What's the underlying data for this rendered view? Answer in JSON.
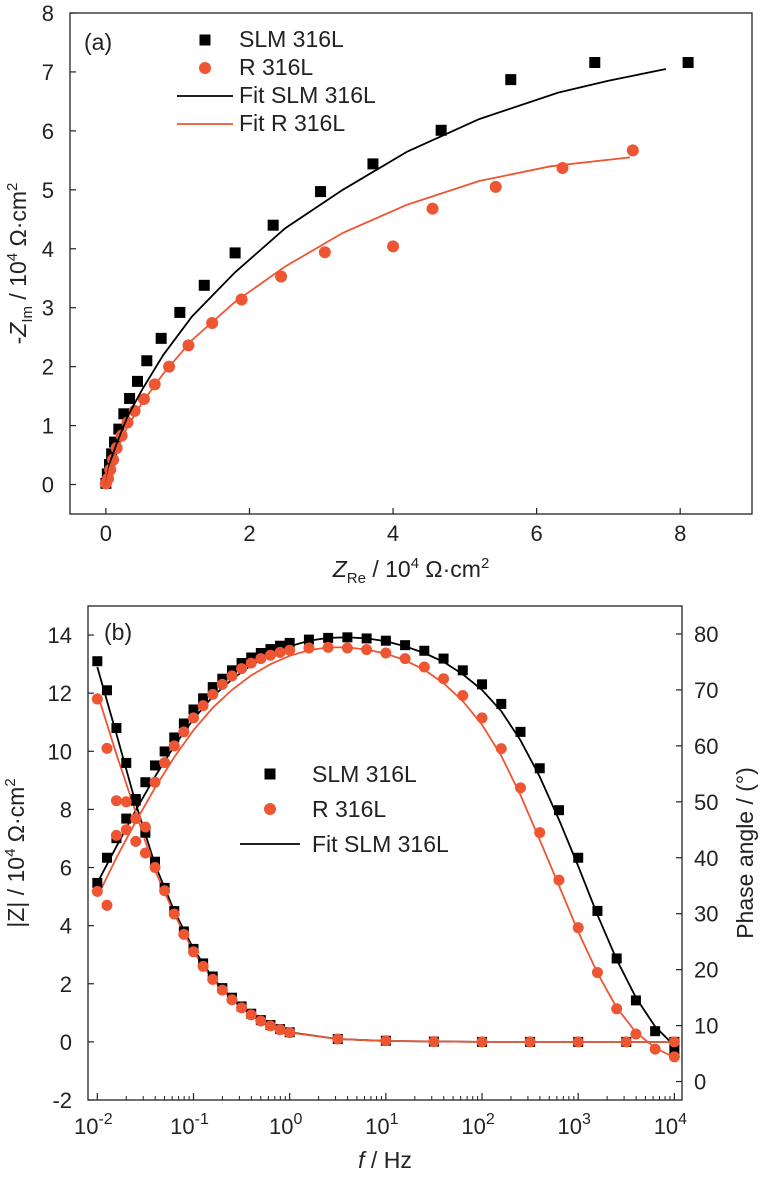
{
  "colors": {
    "sample_slm": "#000000",
    "sample_r": "#ee5533",
    "axis": "#222222"
  },
  "chart_data": [
    {
      "type": "scatter",
      "panel_label": "(a)",
      "xlabel": "Z_Re / 10^4 Ω·cm²",
      "ylabel": "-Z_Im / 10^4 Ω·cm²",
      "xlim": [
        -0.5,
        9.0
      ],
      "ylim": [
        -0.5,
        8.0
      ],
      "xticks": [
        0,
        2,
        4,
        6,
        8
      ],
      "yticks": [
        0,
        1,
        2,
        3,
        4,
        5,
        6,
        7,
        8
      ],
      "legend": {
        "position": "top-left",
        "entries": [
          "SLM 316L",
          "R 316L",
          "Fit SLM 316L",
          "Fit R 316L"
        ]
      },
      "series": [
        {
          "name": "SLM 316L",
          "kind": "markers",
          "marker": "square",
          "color": "#000000",
          "x": [
            0.0,
            0.02,
            0.05,
            0.08,
            0.12,
            0.18,
            0.25,
            0.33,
            0.44,
            0.57,
            0.77,
            1.03,
            1.37,
            1.8,
            2.33,
            2.99,
            3.72,
            4.67,
            5.64,
            6.81,
            8.11
          ],
          "y": [
            0.02,
            0.18,
            0.34,
            0.52,
            0.72,
            0.94,
            1.2,
            1.46,
            1.75,
            2.1,
            2.48,
            2.92,
            3.38,
            3.93,
            4.4,
            4.97,
            5.44,
            6.01,
            6.87,
            7.16,
            7.16
          ]
        },
        {
          "name": "R 316L",
          "kind": "markers",
          "marker": "circle",
          "color": "#ee5533",
          "x": [
            0.0,
            0.03,
            0.06,
            0.1,
            0.15,
            0.22,
            0.3,
            0.4,
            0.53,
            0.68,
            0.88,
            1.15,
            1.48,
            1.89,
            2.44,
            3.05,
            4.0,
            4.55,
            5.43,
            6.36,
            7.34
          ],
          "y": [
            0.02,
            0.1,
            0.25,
            0.42,
            0.62,
            0.83,
            1.05,
            1.25,
            1.45,
            1.7,
            2.0,
            2.36,
            2.74,
            3.14,
            3.53,
            3.94,
            4.04,
            4.68,
            5.05,
            5.37,
            5.67
          ]
        },
        {
          "name": "Fit SLM 316L",
          "kind": "line",
          "color": "#000000",
          "x": [
            0.0,
            0.05,
            0.15,
            0.3,
            0.5,
            0.8,
            1.2,
            1.8,
            2.5,
            3.3,
            4.2,
            5.2,
            6.3,
            7.0,
            7.8
          ],
          "y": [
            0.0,
            0.35,
            0.7,
            1.15,
            1.6,
            2.2,
            2.85,
            3.6,
            4.35,
            5.0,
            5.65,
            6.2,
            6.65,
            6.85,
            7.05
          ]
        },
        {
          "name": "Fit R 316L",
          "kind": "line",
          "color": "#ee5533",
          "x": [
            0.0,
            0.05,
            0.15,
            0.3,
            0.5,
            0.8,
            1.2,
            1.8,
            2.5,
            3.3,
            4.2,
            5.2,
            6.2,
            7.3
          ],
          "y": [
            0.0,
            0.28,
            0.58,
            0.98,
            1.38,
            1.88,
            2.45,
            3.1,
            3.7,
            4.27,
            4.75,
            5.15,
            5.4,
            5.55
          ]
        }
      ]
    },
    {
      "type": "scatter",
      "panel_label": "(b)",
      "xlabel": "f / Hz",
      "ylabel_left": "|Z| / 10^4 Ω·cm²",
      "ylabel_right": "Phase angle / (°)",
      "x_scale": "log",
      "xlim": [
        0.008,
        12000
      ],
      "ylim_left": [
        -2,
        15
      ],
      "ylim_right": [
        -3.3,
        85
      ],
      "xticks": [
        0.01,
        0.1,
        1,
        10,
        100,
        1000,
        10000
      ],
      "xtick_labels": [
        "10-2",
        "10-1",
        "100",
        "101",
        "102",
        "103",
        "104"
      ],
      "yticks_left": [
        -2,
        0,
        2,
        4,
        6,
        8,
        10,
        12,
        14
      ],
      "yticks_right": [
        0,
        10,
        20,
        30,
        40,
        50,
        60,
        70,
        80
      ],
      "legend": {
        "position": "center",
        "entries": [
          "SLM 316L",
          "R 316L",
          "Fit SLM 316L"
        ]
      },
      "series": [
        {
          "name": "SLM 316L",
          "quantity": "|Z|",
          "axis": "left",
          "kind": "markers",
          "marker": "square",
          "color": "#000000",
          "x": [
            0.01,
            0.0126,
            0.0158,
            0.02,
            0.0251,
            0.0316,
            0.0398,
            0.0501,
            0.0631,
            0.0794,
            0.1,
            0.1259,
            0.1585,
            0.1995,
            0.2512,
            0.3162,
            0.3981,
            0.5012,
            0.631,
            0.7943,
            1,
            3.16,
            10,
            31.6,
            100,
            316,
            1000,
            3162,
            10000
          ],
          "y": [
            13.1,
            12.1,
            10.8,
            9.6,
            8.3,
            7.2,
            6.2,
            5.3,
            4.5,
            3.8,
            3.2,
            2.7,
            2.25,
            1.85,
            1.52,
            1.22,
            0.97,
            0.75,
            0.58,
            0.44,
            0.33,
            0.1,
            0.04,
            0.01,
            0.0,
            0.0,
            0.0,
            0.0,
            0.0
          ]
        },
        {
          "name": "SLM 316L",
          "quantity": "phase",
          "axis": "right",
          "kind": "markers",
          "marker": "square",
          "color": "#000000",
          "x": [
            0.01,
            0.0126,
            0.0158,
            0.02,
            0.0251,
            0.0316,
            0.0398,
            0.0501,
            0.0631,
            0.0794,
            0.1,
            0.1259,
            0.1585,
            0.1995,
            0.2512,
            0.3162,
            0.3981,
            0.5012,
            0.631,
            0.7943,
            1,
            1.585,
            2.512,
            3.981,
            6.31,
            10,
            15.85,
            25.12,
            39.81,
            63.1,
            100,
            158.5,
            251.2,
            398.1,
            631,
            1000,
            1585,
            2512,
            3981,
            6310,
            10000
          ],
          "y": [
            35.5,
            40,
            43.5,
            47,
            50.5,
            53.5,
            56.5,
            59,
            61.5,
            64,
            66.5,
            68.5,
            70.5,
            72,
            73.5,
            74.8,
            75.8,
            76.6,
            77.3,
            77.9,
            78.4,
            79,
            79.3,
            79.4,
            79.2,
            78.8,
            78,
            77,
            75.6,
            73.5,
            71,
            67.5,
            62.5,
            56,
            48.5,
            40,
            30.5,
            22,
            14.5,
            9,
            5.5
          ]
        },
        {
          "name": "R 316L",
          "quantity": "|Z|",
          "axis": "left",
          "kind": "markers",
          "marker": "circle",
          "color": "#ee5533",
          "x": [
            0.01,
            0.0126,
            0.0158,
            0.02,
            0.0251,
            0.0316,
            0.0398,
            0.0501,
            0.0631,
            0.0794,
            0.1,
            0.1259,
            0.1585,
            0.1995,
            0.2512,
            0.3162,
            0.3981,
            0.5012,
            0.631,
            0.7943,
            1,
            3.16,
            10,
            31.6,
            100,
            316,
            1000,
            3162,
            10000
          ],
          "y": [
            11.8,
            10.1,
            8.3,
            7.3,
            6.9,
            6.5,
            6.0,
            5.2,
            4.4,
            3.7,
            3.1,
            2.6,
            2.15,
            1.78,
            1.45,
            1.17,
            0.93,
            0.72,
            0.55,
            0.42,
            0.32,
            0.1,
            0.04,
            0.01,
            0.0,
            0.0,
            0.0,
            0.0,
            0.0
          ]
        },
        {
          "name": "R 316L",
          "quantity": "phase",
          "axis": "right",
          "kind": "markers",
          "marker": "circle",
          "color": "#ee5533",
          "x": [
            0.01,
            0.0126,
            0.0158,
            0.02,
            0.0251,
            0.0316,
            0.0398,
            0.0501,
            0.0631,
            0.0794,
            0.1,
            0.1259,
            0.1585,
            0.1995,
            0.2512,
            0.3162,
            0.3981,
            0.5012,
            0.631,
            0.7943,
            1,
            1.585,
            2.512,
            3.981,
            6.31,
            10,
            15.85,
            25.12,
            39.81,
            63.1,
            100,
            158.5,
            251.2,
            398.1,
            631,
            1000,
            1585,
            2512,
            3981,
            6310,
            10000
          ],
          "y": [
            34,
            31.5,
            44,
            50,
            47,
            45.5,
            53.5,
            57,
            60,
            62.5,
            65,
            67.2,
            69.2,
            71,
            72.5,
            73.8,
            74.8,
            75.6,
            76.2,
            76.7,
            77.1,
            77.5,
            77.6,
            77.5,
            77.2,
            76.6,
            75.6,
            74.1,
            72,
            69,
            65,
            59.5,
            52.5,
            44.5,
            36,
            27.5,
            19.5,
            13,
            8.5,
            5.8,
            4.4
          ]
        },
        {
          "name": "Fit SLM 316L",
          "quantity": "|Z|",
          "axis": "left",
          "kind": "line",
          "color": "#000000",
          "x": [
            0.01,
            0.0158,
            0.0251,
            0.0398,
            0.0631,
            0.1,
            0.1585,
            0.2512,
            0.3981,
            0.631,
            1,
            3.16,
            10,
            100,
            1000,
            10000
          ],
          "y": [
            12.9,
            10.6,
            8.2,
            6.1,
            4.5,
            3.2,
            2.2,
            1.5,
            0.95,
            0.57,
            0.33,
            0.1,
            0.03,
            0.0,
            0.0,
            0.0
          ]
        },
        {
          "name": "Fit SLM 316L",
          "quantity": "phase",
          "axis": "right",
          "kind": "line",
          "color": "#000000",
          "x": [
            0.01,
            0.0158,
            0.0251,
            0.0398,
            0.0631,
            0.1,
            0.1585,
            0.2512,
            0.3981,
            0.631,
            1,
            1.585,
            2.512,
            3.981,
            6.31,
            10,
            15.85,
            25.12,
            39.81,
            63.1,
            100,
            158.5,
            251.2,
            398.1,
            631,
            1000,
            1585,
            2512,
            3981,
            6310,
            10000
          ],
          "y": [
            35.5,
            42,
            48.5,
            54.5,
            60,
            64.8,
            68.8,
            71.9,
            74.4,
            76.3,
            77.8,
            78.8,
            79.3,
            79.4,
            79.2,
            78.7,
            77.8,
            76.6,
            75,
            72.8,
            70,
            66.2,
            61,
            54.5,
            46.8,
            38.5,
            29.8,
            21.8,
            15,
            9.8,
            6.4
          ]
        },
        {
          "name": "Fit R 316L",
          "quantity": "|Z|",
          "axis": "left",
          "kind": "line",
          "color": "#ee5533",
          "x": [
            0.01,
            0.0158,
            0.0251,
            0.0398,
            0.0631,
            0.1,
            0.1585,
            0.2512,
            0.3981,
            0.631,
            1,
            3.16,
            10,
            100,
            1000,
            10000
          ],
          "y": [
            12.0,
            9.9,
            7.9,
            5.9,
            4.4,
            3.1,
            2.15,
            1.45,
            0.92,
            0.55,
            0.32,
            0.1,
            0.03,
            0.0,
            0.0,
            0.0
          ]
        },
        {
          "name": "Fit R 316L",
          "quantity": "phase",
          "axis": "right",
          "kind": "line",
          "color": "#ee5533",
          "x": [
            0.01,
            0.0158,
            0.0251,
            0.0398,
            0.0631,
            0.1,
            0.1585,
            0.2512,
            0.3981,
            0.631,
            1,
            1.585,
            2.512,
            3.981,
            6.31,
            10,
            15.85,
            25.12,
            39.81,
            63.1,
            100,
            158.5,
            251.2,
            398.1,
            631,
            1000,
            1585,
            2512,
            3981,
            6310,
            10000
          ],
          "y": [
            33,
            40,
            46.5,
            52.5,
            58,
            62.8,
            66.8,
            70,
            72.6,
            74.6,
            76.1,
            77.1,
            77.6,
            77.6,
            77.2,
            76.5,
            75.3,
            73.6,
            71.2,
            68,
            63.8,
            58.2,
            51.2,
            43.2,
            35,
            26.8,
            19.4,
            13.2,
            8.8,
            6,
            4.3
          ]
        }
      ]
    }
  ]
}
